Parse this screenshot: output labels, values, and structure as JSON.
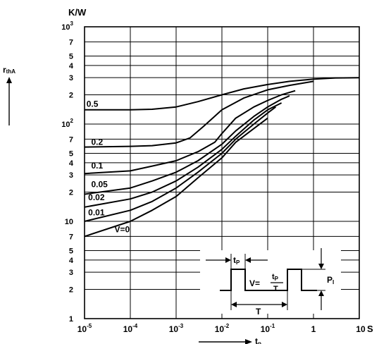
{
  "chart_data": {
    "type": "line",
    "xscale": "log",
    "yscale": "log",
    "xlim": [
      1e-05,
      10
    ],
    "ylim": [
      1,
      1000
    ],
    "grid": true,
    "y_unit": "K/W",
    "ylabel": "r",
    "ylabel_sub": "thA",
    "xlabel": "t",
    "xlabel_sub": "p",
    "x_unit_suffix": "S",
    "x_ticks": [
      {
        "value": 1e-05,
        "base": "10",
        "exp": "-5"
      },
      {
        "value": 0.0001,
        "base": "10",
        "exp": "-4"
      },
      {
        "value": 0.001,
        "base": "10",
        "exp": "-3"
      },
      {
        "value": 0.01,
        "base": "10",
        "exp": "-2"
      },
      {
        "value": 0.1,
        "base": "10",
        "exp": "-1"
      },
      {
        "value": 1,
        "base": "1",
        "exp": ""
      },
      {
        "value": 10,
        "base": "10",
        "exp": ""
      }
    ],
    "y_ticks": [
      {
        "value": 1,
        "base": "1",
        "exp": ""
      },
      {
        "value": 2,
        "base": "2",
        "exp": ""
      },
      {
        "value": 3,
        "base": "3",
        "exp": ""
      },
      {
        "value": 4,
        "base": "4",
        "exp": ""
      },
      {
        "value": 5,
        "base": "5",
        "exp": ""
      },
      {
        "value": 7,
        "base": "7",
        "exp": ""
      },
      {
        "value": 10,
        "base": "10",
        "exp": ""
      },
      {
        "value": 20,
        "base": "2",
        "exp": ""
      },
      {
        "value": 30,
        "base": "3",
        "exp": ""
      },
      {
        "value": 40,
        "base": "4",
        "exp": ""
      },
      {
        "value": 50,
        "base": "5",
        "exp": ""
      },
      {
        "value": 70,
        "base": "7",
        "exp": ""
      },
      {
        "value": 100,
        "base": "10",
        "exp": "2"
      },
      {
        "value": 200,
        "base": "2",
        "exp": ""
      },
      {
        "value": 300,
        "base": "3",
        "exp": ""
      },
      {
        "value": 400,
        "base": "4",
        "exp": ""
      },
      {
        "value": 500,
        "base": "5",
        "exp": ""
      },
      {
        "value": 700,
        "base": "7",
        "exp": ""
      },
      {
        "value": 1000,
        "base": "10",
        "exp": "3"
      }
    ],
    "series": [
      {
        "name": "0.5",
        "label_at": [
          1.1e-05,
          150
        ],
        "x": [
          1e-05,
          0.0001,
          0.0003,
          0.001,
          0.003,
          0.01,
          0.03,
          0.1,
          0.3,
          1,
          3,
          10
        ],
        "y": [
          140,
          140,
          142,
          150,
          170,
          200,
          230,
          255,
          275,
          290,
          298,
          300
        ]
      },
      {
        "name": "0.2",
        "label_at": [
          1.4e-05,
          61
        ],
        "x": [
          1e-05,
          0.0001,
          0.0003,
          0.001,
          0.002,
          0.004,
          0.01,
          0.03,
          0.1,
          0.3,
          1
        ],
        "y": [
          58,
          59,
          60,
          64,
          72,
          95,
          140,
          185,
          225,
          250,
          275
        ]
      },
      {
        "name": "0.1",
        "label_at": [
          1.4e-05,
          35
        ],
        "x": [
          1e-05,
          0.0001,
          0.0003,
          0.001,
          0.003,
          0.007,
          0.01,
          0.02,
          0.05,
          0.1,
          0.2,
          0.4
        ],
        "y": [
          31,
          33,
          37,
          42,
          52,
          65,
          80,
          115,
          150,
          175,
          200,
          220
        ]
      },
      {
        "name": "0.05",
        "label_at": [
          1.4e-05,
          22.5
        ],
        "x": [
          1e-05,
          0.0001,
          0.0003,
          0.001,
          0.003,
          0.01,
          0.02,
          0.05,
          0.1,
          0.2,
          0.3
        ],
        "y": [
          19,
          22,
          26,
          32,
          42,
          62,
          85,
          120,
          150,
          180,
          195
        ]
      },
      {
        "name": "0.02",
        "label_at": [
          1.2e-05,
          16.5
        ],
        "x": [
          1e-05,
          0.0001,
          0.0003,
          0.001,
          0.003,
          0.01,
          0.02,
          0.05,
          0.1,
          0.2
        ],
        "y": [
          14,
          17,
          20,
          26,
          36,
          55,
          75,
          110,
          140,
          165
        ]
      },
      {
        "name": "0.01",
        "label_at": [
          1.2e-05,
          11.5
        ],
        "x": [
          1e-05,
          0.0001,
          0.0003,
          0.001,
          0.003,
          0.01,
          0.02,
          0.05,
          0.1,
          0.15
        ],
        "y": [
          10,
          13,
          16,
          22,
          32,
          50,
          70,
          100,
          130,
          150
        ]
      },
      {
        "name": "V=0",
        "label_at": [
          4.5e-05,
          7.7
        ],
        "x": [
          1e-05,
          0.0001,
          0.0003,
          0.001,
          0.003,
          0.01,
          0.02,
          0.05,
          0.1
        ],
        "y": [
          7,
          10,
          13,
          18,
          28,
          45,
          65,
          90,
          115
        ]
      }
    ],
    "inset": {
      "tp_label": "t",
      "tp_sub": "P",
      "formula_lhs": "V=",
      "formula_num_main": "t",
      "formula_num_sub": "P",
      "formula_den": "T",
      "period_label": "T",
      "power_label": "P",
      "power_sub": "I"
    }
  }
}
